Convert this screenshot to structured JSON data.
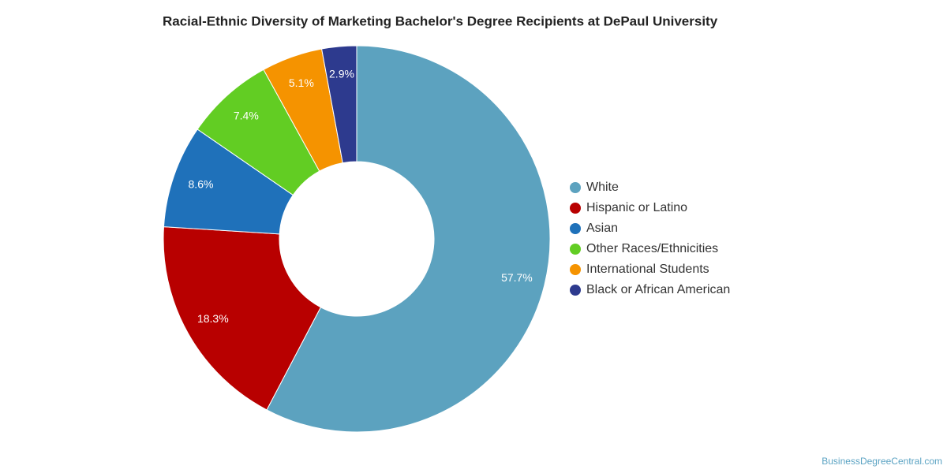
{
  "chart_data": {
    "type": "donut",
    "title": "Racial-Ethnic Diversity of Marketing Bachelor's Degree Recipients at DePaul University",
    "categories": [
      "White",
      "Hispanic or Latino",
      "Asian",
      "Other Races/Ethnicities",
      "International Students",
      "Black or African American"
    ],
    "values": [
      57.7,
      18.3,
      8.6,
      7.4,
      5.1,
      2.9
    ],
    "value_labels": [
      "57.7%",
      "18.3%",
      "8.6%",
      "7.4%",
      "5.1%",
      "2.9%"
    ],
    "colors": [
      "#5ca2bf",
      "#b80000",
      "#1f71ba",
      "#62cd23",
      "#f59300",
      "#2d3a8e"
    ],
    "legend": "right",
    "credit": "BusinessDegreeCentral.com"
  }
}
